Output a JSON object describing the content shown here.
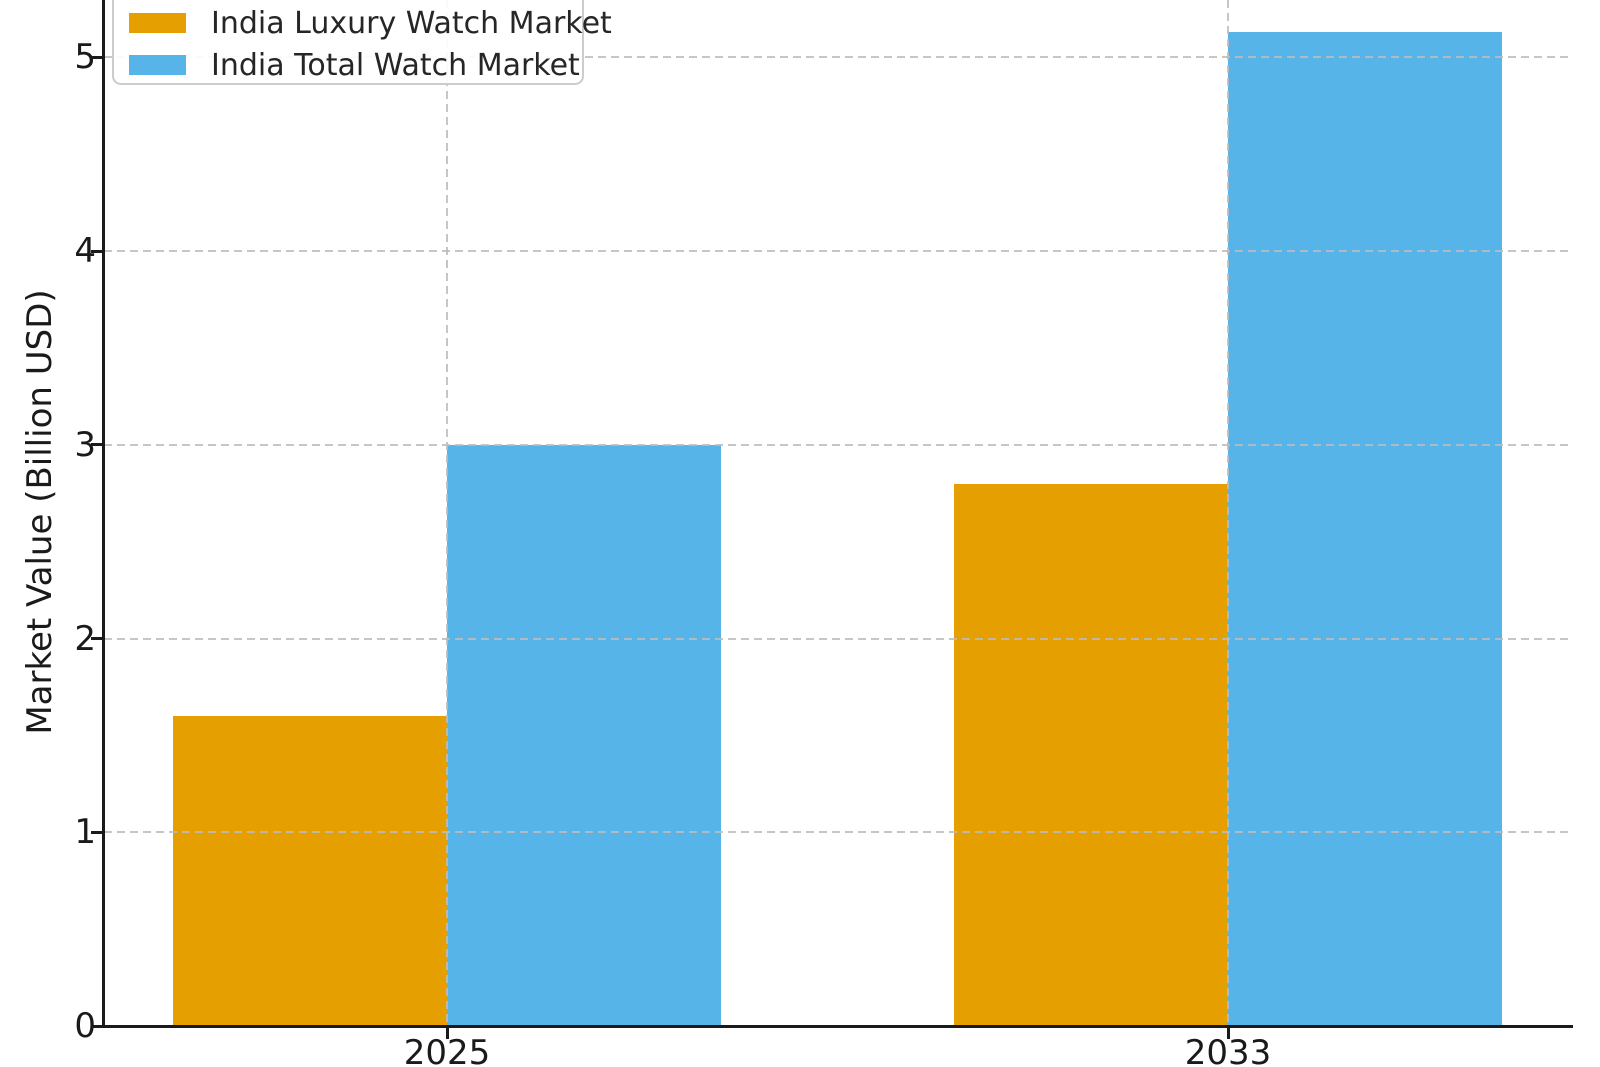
{
  "chart_data": {
    "type": "bar",
    "categories": [
      "2025",
      "2033"
    ],
    "series": [
      {
        "name": "India Luxury Watch Market",
        "color": "#E69F00",
        "values": [
          1.6,
          2.8
        ]
      },
      {
        "name": "India Total Watch Market",
        "color": "#56B4E9",
        "values": [
          3.0,
          5.13
        ]
      }
    ],
    "xlabel": "",
    "ylabel": "Market Value (Billion USD)",
    "ylim": [
      0,
      5.3
    ],
    "yticks": [
      0,
      1,
      2,
      3,
      4,
      5
    ],
    "yticklabels": [
      "0",
      "1",
      "2",
      "3",
      "4",
      "5"
    ],
    "grid": true,
    "grid_style": "dashed",
    "legend_position": "upper-left"
  },
  "colors": {
    "axis": "#1a1a1a",
    "grid": "#bcbcbc",
    "legend_border": "#cccccc",
    "background": "#ffffff"
  }
}
